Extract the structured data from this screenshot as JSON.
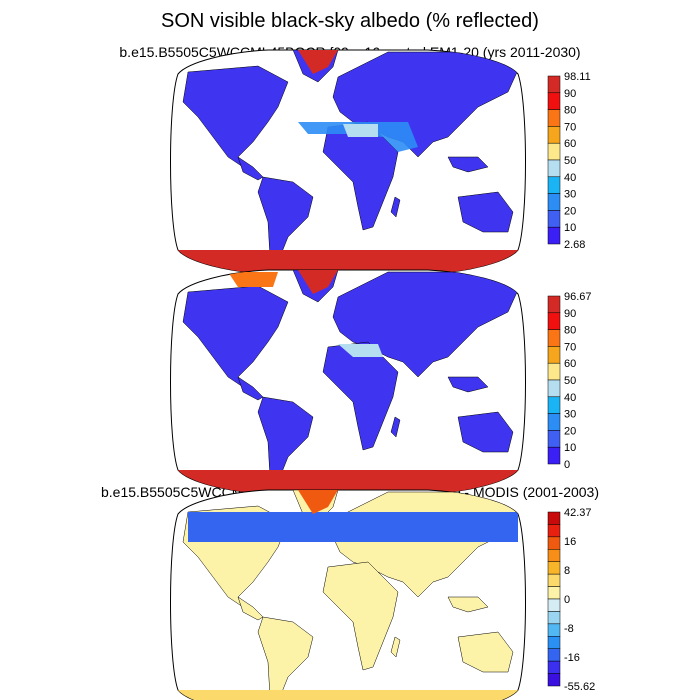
{
  "title": "SON visible black-sky albedo (% reflected)",
  "panels": [
    {
      "title": "b.e15.B5505C5WCCML45BGCR.f09_g16.control.EM1-20 (yrs 2011-2030)",
      "colorbar_labels": [
        "98.11",
        "90",
        "80",
        "70",
        "60",
        "50",
        "40",
        "30",
        "20",
        "10",
        "2.68"
      ],
      "colors": [
        "#d42a25",
        "#f01010",
        "#f97515",
        "#f5a61c",
        "#fde98c",
        "#b5def0",
        "#1ab3f4",
        "#2c8df5",
        "#3f60f2",
        "#3b1ff5"
      ]
    },
    {
      "title": "MODIS (2001-2003)",
      "colorbar_labels": [
        "96.67",
        "90",
        "80",
        "70",
        "60",
        "50",
        "40",
        "30",
        "20",
        "10",
        "0"
      ],
      "colors": [
        "#d42a25",
        "#f01010",
        "#f97515",
        "#f5a61c",
        "#fde98c",
        "#b5def0",
        "#1ab3f4",
        "#2c8df5",
        "#3f60f2",
        "#3b1ff5"
      ]
    },
    {
      "title": "b.e15.B5505C5WCCML45BGCR.f09_g16.control.EM1-20 - MODIS (2001-2003)",
      "colorbar_labels": [
        "42.37",
        "16",
        "8",
        "0",
        "-8",
        "-16",
        "-55.62"
      ],
      "colors": [
        "#c80a0a",
        "#e82010",
        "#f05a10",
        "#f68e18",
        "#f9b52a",
        "#fbd96a",
        "#fdf3a8",
        "#d5ecf5",
        "#9ad5f2",
        "#52b8f4",
        "#2a90f3",
        "#3465f0",
        "#3b30f0",
        "#3a10e0"
      ]
    }
  ]
}
